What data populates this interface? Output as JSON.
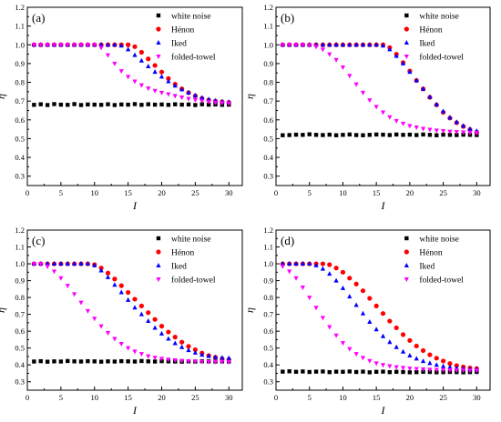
{
  "chart_data": [
    {
      "type": "scatter",
      "panel_label": "(a)",
      "xlabel": "I",
      "ylabel": "η",
      "xlim": [
        0,
        32
      ],
      "ylim": [
        0.25,
        1.2
      ],
      "xticks": [
        0,
        5,
        10,
        15,
        20,
        25,
        30
      ],
      "yticks": [
        "0.3",
        "0.4",
        "0.5",
        "0.6",
        "0.7",
        "0.8",
        "0.9",
        "1.0",
        "1.1",
        "1.2"
      ],
      "legend_placement": "top-right",
      "x": [
        1,
        2,
        3,
        4,
        5,
        6,
        7,
        8,
        9,
        10,
        11,
        12,
        13,
        14,
        15,
        16,
        17,
        18,
        19,
        20,
        21,
        22,
        23,
        24,
        25,
        26,
        27,
        28,
        29,
        30
      ],
      "series": [
        {
          "name": "white noise",
          "marker": "square",
          "color": "#000000",
          "values": [
            0.68,
            0.683,
            0.679,
            0.684,
            0.681,
            0.68,
            0.684,
            0.679,
            0.682,
            0.681,
            0.68,
            0.683,
            0.679,
            0.682,
            0.681,
            0.684,
            0.68,
            0.683,
            0.681,
            0.682,
            0.68,
            0.683,
            0.681,
            0.682,
            0.679,
            0.683,
            0.681,
            0.682,
            0.68,
            0.681
          ]
        },
        {
          "name": "Hénon",
          "marker": "circle",
          "color": "#ff0000",
          "values": [
            1.0,
            1.0,
            1.0,
            1.0,
            1.0,
            1.0,
            1.0,
            1.0,
            1.0,
            1.0,
            1.0,
            1.0,
            1.0,
            1.0,
            1.0,
            0.99,
            0.96,
            0.925,
            0.89,
            0.855,
            0.82,
            0.79,
            0.765,
            0.745,
            0.728,
            0.715,
            0.706,
            0.7,
            0.696,
            0.693
          ]
        },
        {
          "name": "Iked",
          "marker": "triangle-up",
          "color": "#0000ff",
          "values": [
            1.0,
            1.0,
            1.0,
            1.0,
            1.0,
            1.0,
            1.0,
            1.0,
            1.0,
            1.0,
            1.0,
            1.0,
            1.0,
            0.995,
            0.975,
            0.945,
            0.915,
            0.885,
            0.855,
            0.83,
            0.805,
            0.782,
            0.762,
            0.745,
            0.73,
            0.718,
            0.709,
            0.702,
            0.698,
            0.695
          ]
        },
        {
          "name": "folded-towel",
          "marker": "triangle-down",
          "color": "#ff00ff",
          "values": [
            1.0,
            1.0,
            1.0,
            1.0,
            1.0,
            1.0,
            1.0,
            1.0,
            1.0,
            1.0,
            0.985,
            0.945,
            0.9,
            0.86,
            0.83,
            0.805,
            0.785,
            0.768,
            0.755,
            0.745,
            0.737,
            0.728,
            0.72,
            0.712,
            0.706,
            0.7,
            0.696,
            0.692,
            0.69,
            0.688
          ]
        }
      ]
    },
    {
      "type": "scatter",
      "panel_label": "(b)",
      "xlabel": "I",
      "ylabel": "η",
      "xlim": [
        0,
        32
      ],
      "ylim": [
        0.25,
        1.2
      ],
      "xticks": [
        0,
        5,
        10,
        15,
        20,
        25,
        30
      ],
      "yticks": [
        "0.3",
        "0.4",
        "0.5",
        "0.6",
        "0.7",
        "0.8",
        "0.9",
        "1.0",
        "1.1",
        "1.2"
      ],
      "legend_placement": "top-right",
      "x": [
        1,
        2,
        3,
        4,
        5,
        6,
        7,
        8,
        9,
        10,
        11,
        12,
        13,
        14,
        15,
        16,
        17,
        18,
        19,
        20,
        21,
        22,
        23,
        24,
        25,
        26,
        27,
        28,
        29,
        30
      ],
      "series": [
        {
          "name": "white noise",
          "marker": "square",
          "color": "#000000",
          "values": [
            0.518,
            0.519,
            0.521,
            0.52,
            0.523,
            0.52,
            0.519,
            0.521,
            0.518,
            0.52,
            0.522,
            0.519,
            0.518,
            0.52,
            0.522,
            0.521,
            0.519,
            0.522,
            0.52,
            0.521,
            0.519,
            0.522,
            0.52,
            0.518,
            0.521,
            0.52,
            0.519,
            0.521,
            0.52,
            0.519
          ]
        },
        {
          "name": "Hénon",
          "marker": "circle",
          "color": "#ff0000",
          "values": [
            1.0,
            1.0,
            1.0,
            1.0,
            1.0,
            1.0,
            1.0,
            1.0,
            1.0,
            1.0,
            1.0,
            1.0,
            1.0,
            1.0,
            1.0,
            1.0,
            0.985,
            0.95,
            0.905,
            0.86,
            0.81,
            0.765,
            0.72,
            0.68,
            0.64,
            0.61,
            0.585,
            0.565,
            0.548,
            0.535
          ]
        },
        {
          "name": "Iked",
          "marker": "triangle-up",
          "color": "#0000ff",
          "values": [
            1.0,
            1.0,
            1.0,
            1.0,
            1.0,
            1.0,
            1.0,
            1.0,
            1.0,
            1.0,
            1.0,
            1.0,
            1.0,
            1.0,
            1.0,
            0.995,
            0.975,
            0.94,
            0.9,
            0.855,
            0.81,
            0.765,
            0.722,
            0.682,
            0.645,
            0.612,
            0.588,
            0.568,
            0.552,
            0.54
          ]
        },
        {
          "name": "folded-towel",
          "marker": "triangle-down",
          "color": "#ff00ff",
          "values": [
            1.0,
            1.0,
            1.0,
            1.0,
            0.998,
            0.99,
            0.975,
            0.95,
            0.92,
            0.88,
            0.835,
            0.79,
            0.745,
            0.705,
            0.67,
            0.64,
            0.615,
            0.595,
            0.58,
            0.568,
            0.56,
            0.553,
            0.548,
            0.544,
            0.541,
            0.538,
            0.536,
            0.534,
            0.532,
            0.531
          ]
        }
      ]
    },
    {
      "type": "scatter",
      "panel_label": "(c)",
      "xlabel": "I",
      "ylabel": "η",
      "xlim": [
        0,
        32
      ],
      "ylim": [
        0.25,
        1.2
      ],
      "xticks": [
        0,
        5,
        10,
        15,
        20,
        25,
        30
      ],
      "yticks": [
        "0.3",
        "0.4",
        "0.5",
        "0.6",
        "0.7",
        "0.8",
        "0.9",
        "1.0",
        "1.1",
        "1.2"
      ],
      "legend_placement": "top-right",
      "x": [
        1,
        2,
        3,
        4,
        5,
        6,
        7,
        8,
        9,
        10,
        11,
        12,
        13,
        14,
        15,
        16,
        17,
        18,
        19,
        20,
        21,
        22,
        23,
        24,
        25,
        26,
        27,
        28,
        29,
        30
      ],
      "series": [
        {
          "name": "white noise",
          "marker": "square",
          "color": "#000000",
          "values": [
            0.42,
            0.422,
            0.419,
            0.421,
            0.42,
            0.423,
            0.421,
            0.42,
            0.422,
            0.421,
            0.419,
            0.421,
            0.42,
            0.422,
            0.421,
            0.42,
            0.423,
            0.421,
            0.42,
            0.422,
            0.421,
            0.42,
            0.419,
            0.421,
            0.42,
            0.422,
            0.421,
            0.42,
            0.421,
            0.42
          ]
        },
        {
          "name": "Hénon",
          "marker": "circle",
          "color": "#ff0000",
          "values": [
            1.0,
            1.0,
            1.0,
            1.0,
            1.0,
            1.0,
            1.0,
            1.0,
            1.0,
            0.995,
            0.975,
            0.945,
            0.91,
            0.87,
            0.83,
            0.79,
            0.75,
            0.71,
            0.67,
            0.63,
            0.595,
            0.565,
            0.535,
            0.51,
            0.49,
            0.47,
            0.455,
            0.445,
            0.437,
            0.432
          ]
        },
        {
          "name": "Iked",
          "marker": "triangle-up",
          "color": "#0000ff",
          "values": [
            1.0,
            1.0,
            1.0,
            1.0,
            1.0,
            1.0,
            1.0,
            1.0,
            1.0,
            0.99,
            0.96,
            0.92,
            0.875,
            0.83,
            0.785,
            0.74,
            0.7,
            0.66,
            0.62,
            0.585,
            0.555,
            0.528,
            0.505,
            0.487,
            0.472,
            0.46,
            0.452,
            0.446,
            0.442,
            0.44
          ]
        },
        {
          "name": "folded-towel",
          "marker": "triangle-down",
          "color": "#ff00ff",
          "values": [
            1.0,
            1.0,
            0.985,
            0.955,
            0.915,
            0.87,
            0.82,
            0.77,
            0.72,
            0.675,
            0.63,
            0.59,
            0.555,
            0.525,
            0.5,
            0.48,
            0.465,
            0.452,
            0.443,
            0.437,
            0.432,
            0.428,
            0.425,
            0.423,
            0.421,
            0.42,
            0.419,
            0.418,
            0.418,
            0.417
          ]
        }
      ]
    },
    {
      "type": "scatter",
      "panel_label": "(d)",
      "xlabel": "I",
      "ylabel": "η",
      "xlim": [
        0,
        32
      ],
      "ylim": [
        0.25,
        1.2
      ],
      "xticks": [
        0,
        5,
        10,
        15,
        20,
        25,
        30
      ],
      "yticks": [
        "0.3",
        "0.4",
        "0.5",
        "0.6",
        "0.7",
        "0.8",
        "0.9",
        "1.0",
        "1.1",
        "1.2"
      ],
      "legend_placement": "top-right",
      "x": [
        1,
        2,
        3,
        4,
        5,
        6,
        7,
        8,
        9,
        10,
        11,
        12,
        13,
        14,
        15,
        16,
        17,
        18,
        19,
        20,
        21,
        22,
        23,
        24,
        25,
        26,
        27,
        28,
        29,
        30
      ],
      "series": [
        {
          "name": "white noise",
          "marker": "square",
          "color": "#000000",
          "values": [
            0.36,
            0.362,
            0.359,
            0.361,
            0.358,
            0.36,
            0.361,
            0.357,
            0.36,
            0.359,
            0.361,
            0.358,
            0.36,
            0.356,
            0.359,
            0.36,
            0.357,
            0.359,
            0.358,
            0.356,
            0.357,
            0.359,
            0.358,
            0.356,
            0.357,
            0.358,
            0.357,
            0.356,
            0.357,
            0.358
          ]
        },
        {
          "name": "Hénon",
          "marker": "circle",
          "color": "#ff0000",
          "values": [
            1.0,
            1.0,
            1.0,
            1.0,
            1.0,
            1.0,
            1.0,
            0.995,
            0.975,
            0.95,
            0.915,
            0.88,
            0.84,
            0.795,
            0.75,
            0.705,
            0.66,
            0.62,
            0.58,
            0.545,
            0.512,
            0.485,
            0.46,
            0.44,
            0.423,
            0.408,
            0.396,
            0.388,
            0.382,
            0.378
          ]
        },
        {
          "name": "Iked",
          "marker": "triangle-up",
          "color": "#0000ff",
          "values": [
            1.0,
            1.0,
            1.0,
            1.0,
            1.0,
            0.99,
            0.97,
            0.94,
            0.9,
            0.855,
            0.805,
            0.755,
            0.705,
            0.655,
            0.61,
            0.57,
            0.535,
            0.505,
            0.478,
            0.455,
            0.437,
            0.422,
            0.41,
            0.4,
            0.392,
            0.386,
            0.381,
            0.378,
            0.376,
            0.374
          ]
        },
        {
          "name": "folded-towel",
          "marker": "triangle-down",
          "color": "#ff00ff",
          "values": [
            0.985,
            0.955,
            0.915,
            0.86,
            0.8,
            0.74,
            0.68,
            0.625,
            0.575,
            0.53,
            0.495,
            0.465,
            0.442,
            0.424,
            0.41,
            0.4,
            0.393,
            0.387,
            0.383,
            0.379,
            0.376,
            0.374,
            0.372,
            0.371,
            0.37,
            0.369,
            0.368,
            0.368,
            0.367,
            0.367
          ]
        }
      ]
    }
  ]
}
